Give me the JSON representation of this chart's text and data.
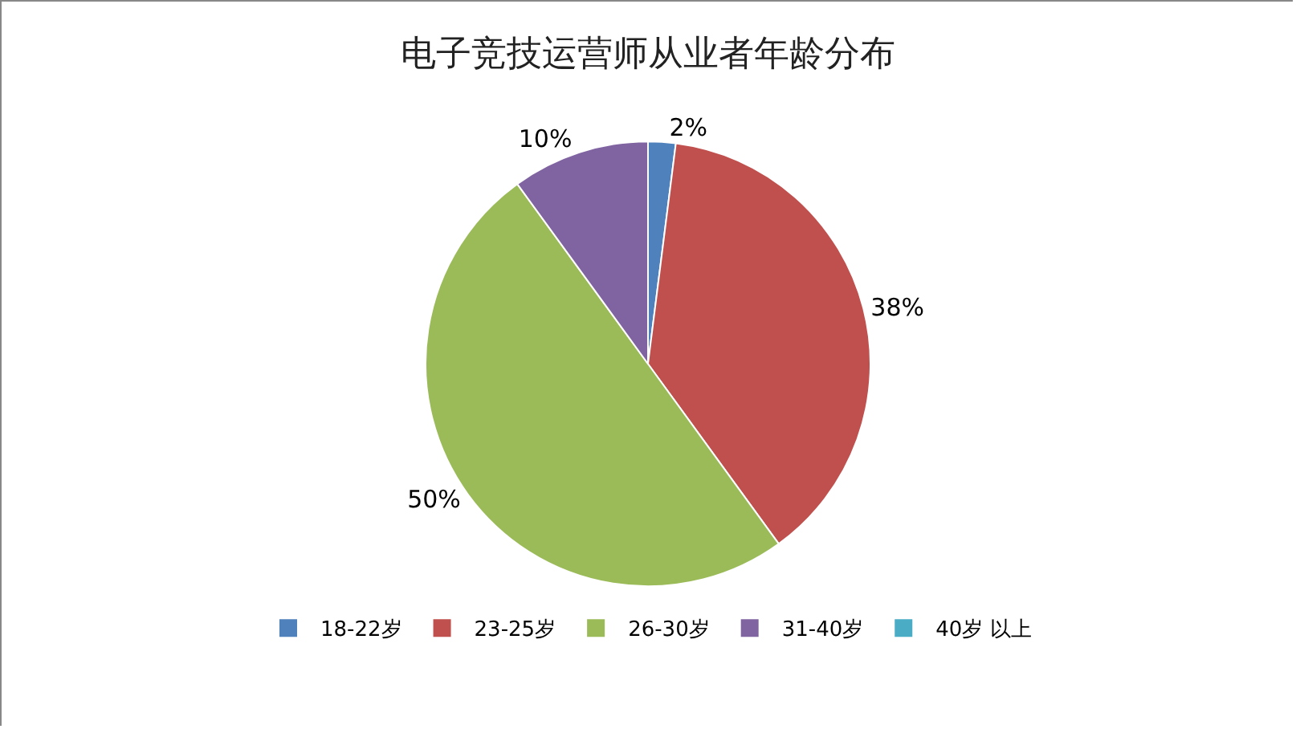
{
  "chart_data": {
    "type": "pie",
    "title": "电子竞技运营师从业者年龄分布",
    "categories": [
      "18-22岁",
      "23-25岁",
      "26-30岁",
      "31-40岁",
      "40岁 以上"
    ],
    "values": [
      2,
      38,
      50,
      10,
      0
    ],
    "colors": [
      "#4f81bd",
      "#c0504d",
      "#9bbb59",
      "#8064a2",
      "#4bacc6"
    ],
    "value_labels": [
      "2%",
      "38%",
      "50%",
      "10%",
      null
    ],
    "legend": "bottom"
  }
}
